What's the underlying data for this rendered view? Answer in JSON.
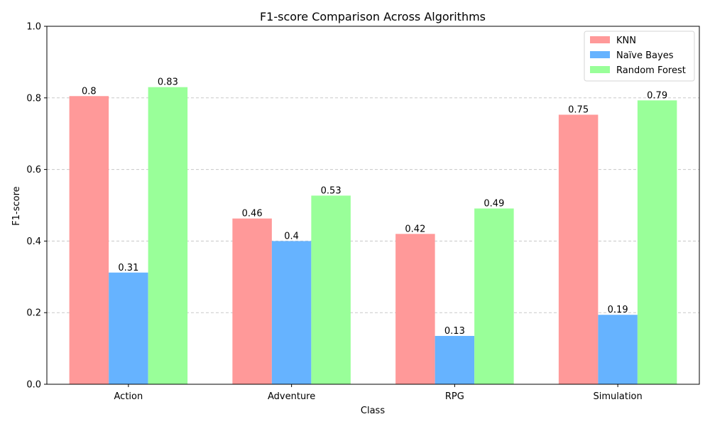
{
  "chart_data": {
    "type": "bar",
    "title": "F1-score Comparison Across Algorithms",
    "xlabel": "Class",
    "ylabel": "F1-score",
    "categories": [
      "Action",
      "Adventure",
      "RPG",
      "Simulation"
    ],
    "ylim": [
      0,
      1.0
    ],
    "yticks": [
      "0.0",
      "0.2",
      "0.4",
      "0.6",
      "0.8",
      "1.0"
    ],
    "ytick_values": [
      0,
      0.2,
      0.4,
      0.6,
      0.8,
      1.0
    ],
    "grid": "y-dashed",
    "legend_position": "top-right",
    "series": [
      {
        "name": "KNN",
        "color": "#ff9999",
        "values": [
          0.805,
          0.463,
          0.42,
          0.753
        ],
        "labels": [
          "0.8",
          "0.46",
          "0.42",
          "0.75"
        ]
      },
      {
        "name": "Naïve Bayes",
        "color": "#66b3ff",
        "values": [
          0.312,
          0.4,
          0.135,
          0.194
        ],
        "labels": [
          "0.31",
          "0.4",
          "0.13",
          "0.19"
        ]
      },
      {
        "name": "Random Forest",
        "color": "#99ff99",
        "values": [
          0.83,
          0.527,
          0.491,
          0.793
        ],
        "labels": [
          "0.83",
          "0.53",
          "0.49",
          "0.79"
        ]
      }
    ]
  }
}
